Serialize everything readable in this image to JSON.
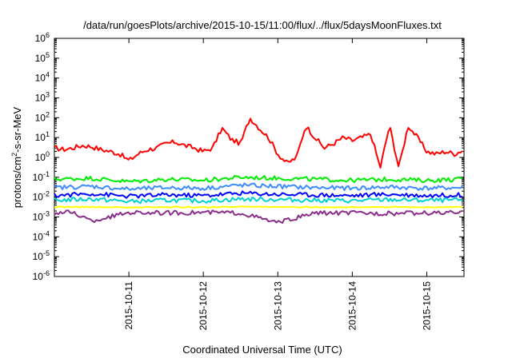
{
  "chart_data": {
    "type": "line",
    "title": "/data/run/goesPlots/archive/2015-10-15/11:00/flux/../flux/5daysMoonFluxes.txt",
    "xlabel": "Coordinated Universal Time (UTC)",
    "ylabel": {
      "pre": "protons/cm",
      "sup": "2",
      "post": "-s-sr-MeV"
    },
    "yscale": "log",
    "ylim": [
      1e-06,
      1000000.0
    ],
    "xlim": [
      "2015-10-10T00:00",
      "2015-10-15T12:00"
    ],
    "x_ticks": [
      "2015-10-11",
      "2015-10-12",
      "2015-10-13",
      "2015-10-14",
      "2015-10-15"
    ],
    "y_ticks": [
      {
        "value": 1e-06,
        "base": "10",
        "exp": "-6"
      },
      {
        "value": 1e-05,
        "base": "10",
        "exp": "-5"
      },
      {
        "value": 0.0001,
        "base": "10",
        "exp": "-4"
      },
      {
        "value": 0.001,
        "base": "10",
        "exp": "-3"
      },
      {
        "value": 0.01,
        "base": "10",
        "exp": "-2"
      },
      {
        "value": 0.1,
        "base": "10",
        "exp": "-1"
      },
      {
        "value": 1,
        "base": "10",
        "exp": "0"
      },
      {
        "value": 10,
        "base": "10",
        "exp": "1"
      },
      {
        "value": 100,
        "base": "10",
        "exp": "2"
      },
      {
        "value": 1000,
        "base": "10",
        "exp": "3"
      },
      {
        "value": 10000,
        "base": "10",
        "exp": "4"
      },
      {
        "value": 100000,
        "base": "10",
        "exp": "5"
      },
      {
        "value": 1000000,
        "base": "10",
        "exp": "6"
      }
    ],
    "grid": false,
    "legend": "none",
    "series": [
      {
        "color": "#ff0000",
        "x": [
          "2015-10-10T00:00",
          "2015-10-10T03:00",
          "2015-10-10T06:00",
          "2015-10-10T09:00",
          "2015-10-10T12:00",
          "2015-10-10T15:00",
          "2015-10-10T18:00",
          "2015-10-10T21:00",
          "2015-10-11T00:00",
          "2015-10-11T03:00",
          "2015-10-11T06:00",
          "2015-10-11T09:00",
          "2015-10-11T12:00",
          "2015-10-11T15:00",
          "2015-10-11T18:00",
          "2015-10-11T21:00",
          "2015-10-12T00:00",
          "2015-10-12T03:00",
          "2015-10-12T06:00",
          "2015-10-12T09:00",
          "2015-10-12T12:00",
          "2015-10-12T15:00",
          "2015-10-12T18:00",
          "2015-10-12T21:00",
          "2015-10-13T00:00",
          "2015-10-13T03:00",
          "2015-10-13T06:00",
          "2015-10-13T09:00",
          "2015-10-13T12:00",
          "2015-10-13T15:00",
          "2015-10-13T18:00",
          "2015-10-13T21:00",
          "2015-10-14T00:00",
          "2015-10-14T03:00",
          "2015-10-14T06:00",
          "2015-10-14T09:00",
          "2015-10-14T12:00",
          "2015-10-14T15:00",
          "2015-10-14T18:00",
          "2015-10-14T21:00",
          "2015-10-15T00:00",
          "2015-10-15T03:00",
          "2015-10-15T06:00",
          "2015-10-15T09:00",
          "2015-10-15T12:00"
        ],
        "y": [
          3,
          2.5,
          3,
          4,
          3.5,
          2.5,
          2,
          1.5,
          0.7,
          1.5,
          2.5,
          3,
          5,
          6,
          4,
          3,
          2,
          3,
          30,
          8,
          5,
          100,
          30,
          10,
          1.5,
          0.5,
          1,
          40,
          10,
          3,
          5,
          10,
          7,
          10,
          15,
          0.3,
          40,
          0.3,
          40,
          10,
          2,
          1.5,
          2,
          1.5,
          2.5
        ]
      },
      {
        "color": "#00ee00",
        "x": [
          "2015-10-10T00:00",
          "2015-10-10T12:00",
          "2015-10-11T00:00",
          "2015-10-11T12:00",
          "2015-10-12T00:00",
          "2015-10-12T12:00",
          "2015-10-13T00:00",
          "2015-10-13T12:00",
          "2015-10-14T00:00",
          "2015-10-14T12:00",
          "2015-10-15T00:00",
          "2015-10-15T12:00"
        ],
        "y": [
          0.08,
          0.09,
          0.06,
          0.08,
          0.07,
          0.1,
          0.09,
          0.08,
          0.07,
          0.08,
          0.07,
          0.08
        ]
      },
      {
        "color": "#3d8cff",
        "x": [
          "2015-10-10T00:00",
          "2015-10-10T12:00",
          "2015-10-11T00:00",
          "2015-10-11T12:00",
          "2015-10-12T00:00",
          "2015-10-12T12:00",
          "2015-10-13T00:00",
          "2015-10-13T12:00",
          "2015-10-14T00:00",
          "2015-10-14T12:00",
          "2015-10-15T00:00",
          "2015-10-15T12:00"
        ],
        "y": [
          0.03,
          0.035,
          0.025,
          0.03,
          0.028,
          0.04,
          0.035,
          0.03,
          0.028,
          0.032,
          0.028,
          0.03
        ]
      },
      {
        "color": "#0000ff",
        "x": [
          "2015-10-10T00:00",
          "2015-10-10T12:00",
          "2015-10-11T00:00",
          "2015-10-11T12:00",
          "2015-10-12T00:00",
          "2015-10-12T12:00",
          "2015-10-13T00:00",
          "2015-10-13T12:00",
          "2015-10-14T00:00",
          "2015-10-14T12:00",
          "2015-10-15T00:00",
          "2015-10-15T12:00"
        ],
        "y": [
          0.012,
          0.015,
          0.011,
          0.013,
          0.012,
          0.016,
          0.014,
          0.013,
          0.012,
          0.014,
          0.012,
          0.013
        ]
      },
      {
        "color": "#00d0d0",
        "x": [
          "2015-10-10T00:00",
          "2015-10-10T12:00",
          "2015-10-11T00:00",
          "2015-10-11T12:00",
          "2015-10-12T00:00",
          "2015-10-12T12:00",
          "2015-10-13T00:00",
          "2015-10-13T12:00",
          "2015-10-14T00:00",
          "2015-10-14T12:00",
          "2015-10-15T00:00",
          "2015-10-15T12:00"
        ],
        "y": [
          0.007,
          0.008,
          0.006,
          0.007,
          0.0065,
          0.008,
          0.0075,
          0.007,
          0.0065,
          0.0075,
          0.0068,
          0.007
        ]
      },
      {
        "color": "#ffff00",
        "x": [
          "2015-10-10T00:00",
          "2015-10-10T12:00",
          "2015-10-11T00:00",
          "2015-10-11T12:00",
          "2015-10-12T00:00",
          "2015-10-12T12:00",
          "2015-10-13T00:00",
          "2015-10-13T12:00",
          "2015-10-14T00:00",
          "2015-10-14T12:00",
          "2015-10-15T00:00",
          "2015-10-15T12:00"
        ],
        "y": [
          0.0032,
          0.0032,
          0.003,
          0.0032,
          0.0031,
          0.0033,
          0.0032,
          0.0031,
          0.0031,
          0.0032,
          0.0031,
          0.0032
        ]
      },
      {
        "color": "#8b2d8b",
        "x": [
          "2015-10-10T00:00",
          "2015-10-10T06:00",
          "2015-10-10T12:00",
          "2015-10-11T00:00",
          "2015-10-11T12:00",
          "2015-10-12T00:00",
          "2015-10-12T12:00",
          "2015-10-13T00:00",
          "2015-10-13T12:00",
          "2015-10-14T00:00",
          "2015-10-14T12:00",
          "2015-10-15T00:00",
          "2015-10-15T12:00"
        ],
        "y": [
          0.0016,
          0.0017,
          0.0006,
          0.0017,
          0.0016,
          0.0017,
          0.0016,
          0.0005,
          0.0016,
          0.0016,
          0.0015,
          0.0016,
          0.0016
        ]
      }
    ]
  }
}
